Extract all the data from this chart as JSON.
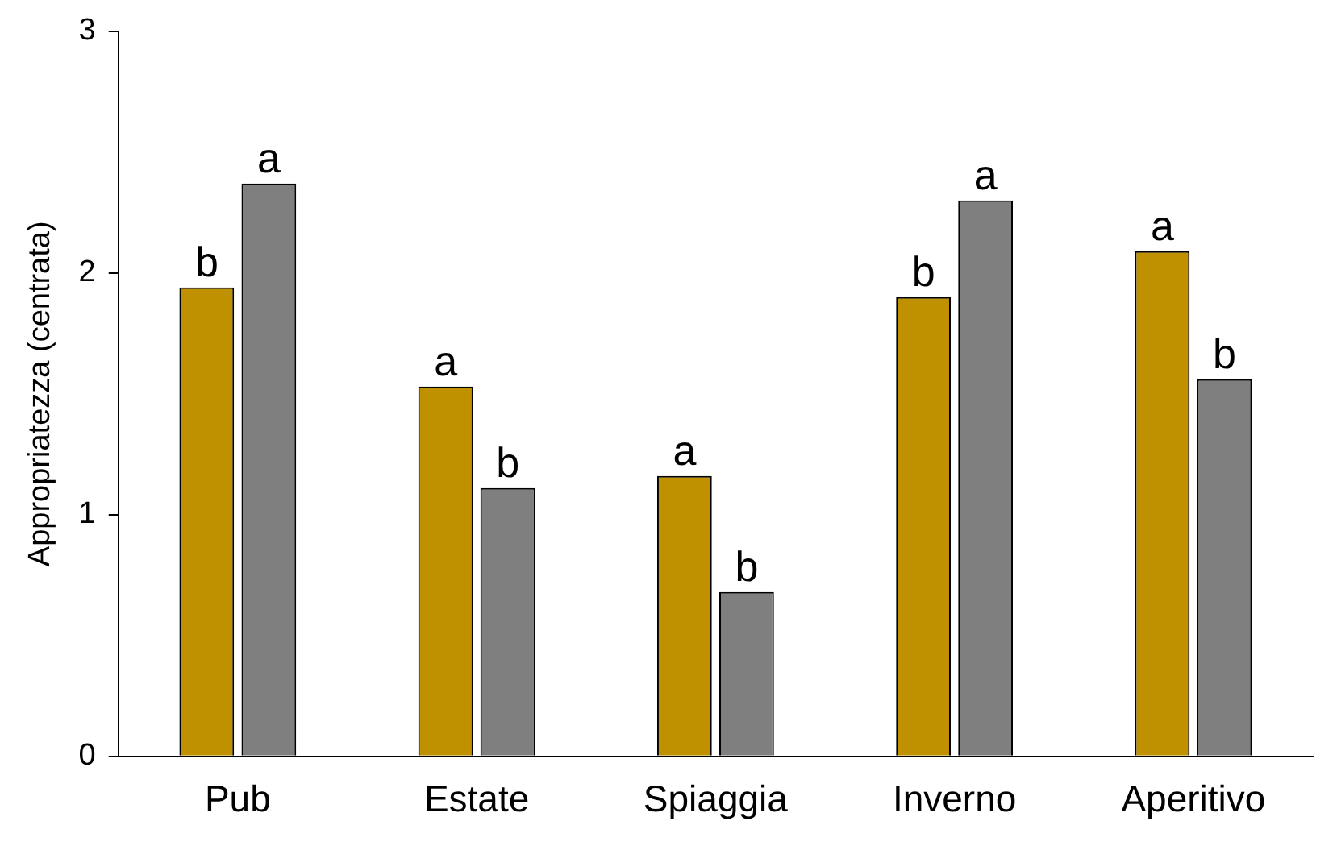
{
  "chart_data": {
    "type": "bar",
    "ylabel": "Appropriatezza (centrata)",
    "categories": [
      "Pub",
      "Estate",
      "Spiaggia",
      "Inverno",
      "Aperitivo"
    ],
    "series": [
      {
        "color": "#bf9000",
        "values": [
          1.94,
          1.53,
          1.16,
          1.9,
          2.09
        ],
        "value_labels": [
          "b",
          "a",
          "a",
          "b",
          "a"
        ]
      },
      {
        "color": "#7f7f7f",
        "values": [
          2.37,
          1.11,
          0.68,
          2.3,
          1.56
        ],
        "value_labels": [
          "a",
          "b",
          "b",
          "a",
          "b"
        ]
      }
    ],
    "ylim": [
      0,
      3
    ],
    "yticks": [
      0,
      1,
      2,
      3
    ],
    "grid": false,
    "legend": false
  }
}
